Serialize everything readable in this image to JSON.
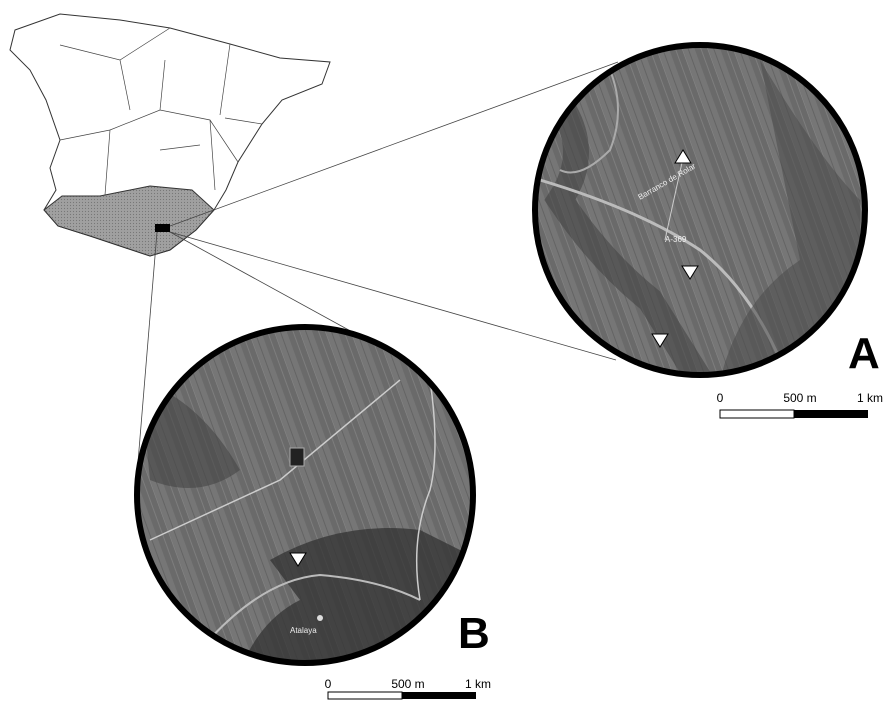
{
  "panels": [
    {
      "label": "A",
      "place_labels": [
        "Barranco de Rolar",
        "A-369"
      ],
      "scale": {
        "ticks": [
          "0",
          "500 m",
          "1 km"
        ]
      }
    },
    {
      "label": "B",
      "place_labels": [
        "Atalaya"
      ],
      "scale": {
        "ticks": [
          "0",
          "500 m",
          "1 km"
        ]
      }
    }
  ]
}
